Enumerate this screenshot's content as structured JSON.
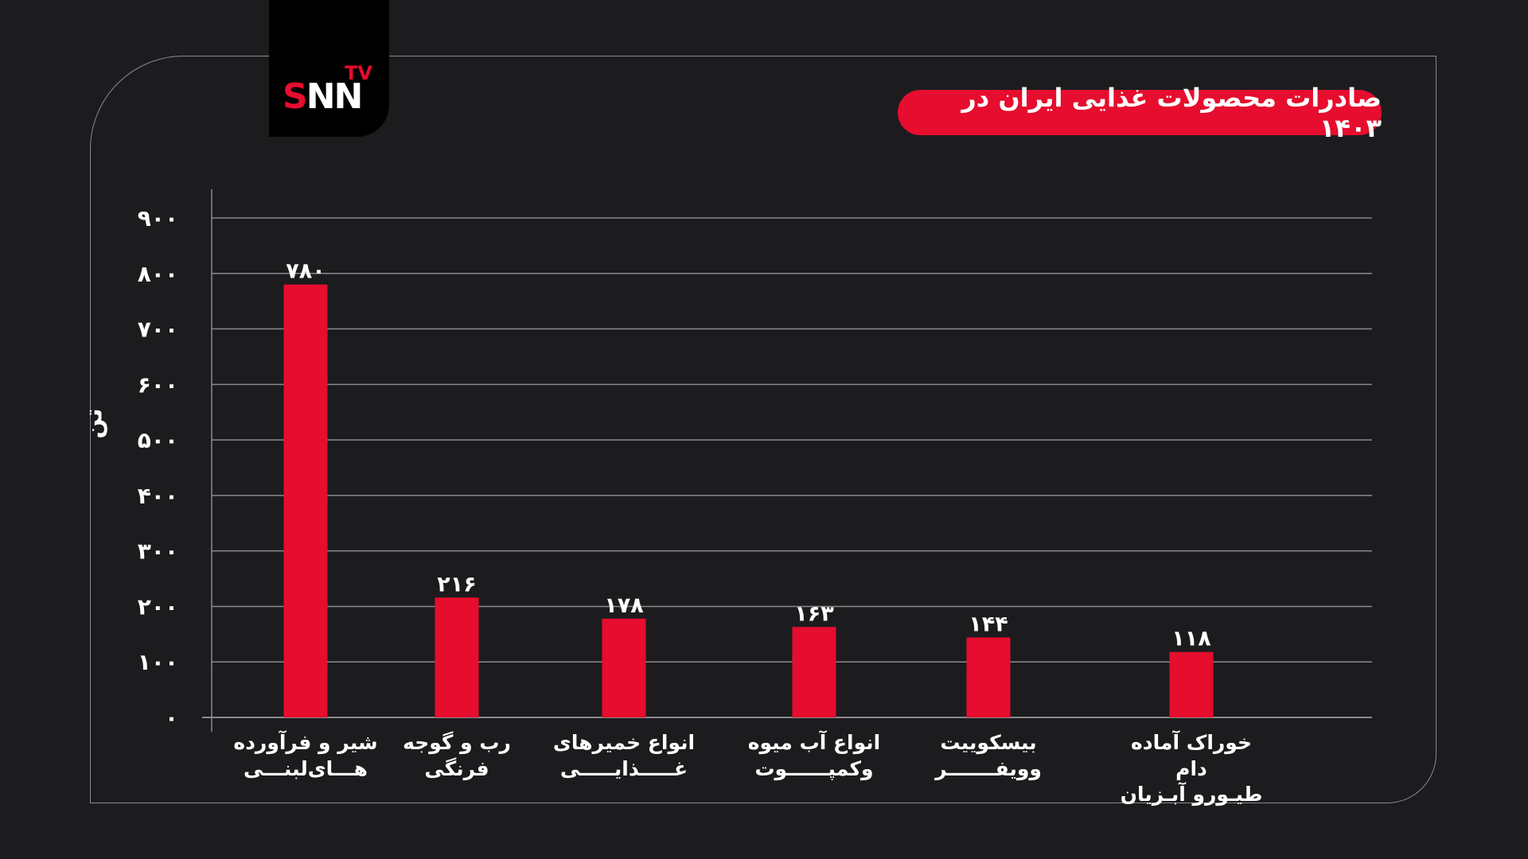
{
  "logo": {
    "s": "S",
    "nn": "NN",
    "tv": "TV"
  },
  "chart_data": {
    "type": "bar",
    "title": "صادرات محصولات غذایی ایران در ۱۴۰۳",
    "ylabel": "تن",
    "xlabel": "",
    "ylim": [
      0,
      900
    ],
    "yticks": [
      0,
      100,
      200,
      300,
      400,
      500,
      600,
      700,
      800,
      900
    ],
    "ytick_labels": [
      "٠",
      "١٠٠",
      "٢٠٠",
      "٣٠٠",
      "۴٠٠",
      "۵٠٠",
      "۶٠٠",
      "٧٠٠",
      "٨٠٠",
      "٩٠٠"
    ],
    "grid": true,
    "categories": [
      "شیر و فرآورده\nهـــای‌لبنـــی",
      "رب و گوجه فرنگی",
      "انواع خمیرهای\nغـــــذایـــــی",
      "انواع آب میوه\nوکمپــــــوت",
      "بیسکوییت\nوویفـــــــر",
      "خوراک آماده دام\nطیـورو آبـزیان"
    ],
    "values": [
      780,
      216,
      178,
      163,
      144,
      118
    ],
    "value_labels": [
      "٧٨٠",
      "٢١۶",
      "١٧٨",
      "١۶٣",
      "١۴۴",
      "١١٨"
    ],
    "bar_color": "#e60d2e",
    "grid_color": "#8a8a8e",
    "text_color": "#ffffff"
  }
}
